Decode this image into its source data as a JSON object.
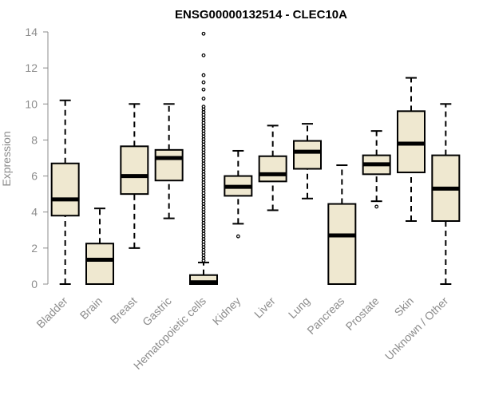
{
  "chart_data": {
    "type": "boxplot",
    "title": "ENSG00000132514 - CLEC10A",
    "xlabel": "",
    "ylabel": "Expression",
    "ylim": [
      0,
      14
    ],
    "yticks": [
      0,
      2,
      4,
      6,
      8,
      10,
      12,
      14
    ],
    "grid": false,
    "legend": "none",
    "box_fill": "#efe8d0",
    "box_stroke": "#000000",
    "categories": [
      "Bladder",
      "Brain",
      "Breast",
      "Gastric",
      "Hematopoietic cells",
      "Kidney",
      "Liver",
      "Lung",
      "Pancreas",
      "Prostate",
      "Skin",
      "Unknown / Other"
    ],
    "boxes": [
      {
        "min": 0.0,
        "q1": 3.8,
        "median": 4.7,
        "q3": 6.7,
        "max": 10.2,
        "outliers": []
      },
      {
        "min": 0.0,
        "q1": 0.0,
        "median": 1.35,
        "q3": 2.25,
        "max": 4.2,
        "outliers": []
      },
      {
        "min": 2.0,
        "q1": 5.0,
        "median": 6.0,
        "q3": 7.65,
        "max": 10.0,
        "outliers": []
      },
      {
        "min": 3.65,
        "q1": 5.75,
        "median": 7.0,
        "q3": 7.45,
        "max": 10.0,
        "outliers": []
      },
      {
        "min": 0.0,
        "q1": 0.0,
        "median": 0.1,
        "q3": 0.5,
        "max": 1.2,
        "outliers": [
          1.3,
          1.45,
          1.6,
          1.75,
          1.9,
          2.05,
          2.2,
          2.35,
          2.5,
          2.65,
          2.8,
          2.95,
          3.1,
          3.25,
          3.4,
          3.55,
          3.7,
          3.85,
          4.0,
          4.15,
          4.3,
          4.45,
          4.6,
          4.75,
          4.9,
          5.05,
          5.2,
          5.35,
          5.5,
          5.65,
          5.8,
          5.95,
          6.1,
          6.25,
          6.4,
          6.55,
          6.7,
          6.85,
          7.0,
          7.15,
          7.3,
          7.45,
          7.6,
          7.75,
          7.9,
          8.05,
          8.2,
          8.35,
          8.5,
          8.65,
          8.8,
          8.95,
          9.1,
          9.25,
          9.4,
          9.55,
          9.7,
          9.85,
          10.3,
          10.8,
          11.2,
          11.6,
          12.7,
          13.9
        ]
      },
      {
        "min": 3.35,
        "q1": 4.9,
        "median": 5.4,
        "q3": 6.0,
        "max": 7.4,
        "outliers": [
          2.65
        ]
      },
      {
        "min": 4.1,
        "q1": 5.7,
        "median": 6.1,
        "q3": 7.1,
        "max": 8.8,
        "outliers": []
      },
      {
        "min": 4.75,
        "q1": 6.4,
        "median": 7.35,
        "q3": 7.95,
        "max": 8.9,
        "outliers": []
      },
      {
        "min": 0.0,
        "q1": 0.0,
        "median": 2.7,
        "q3": 4.45,
        "max": 6.6,
        "outliers": []
      },
      {
        "min": 4.6,
        "q1": 6.1,
        "median": 6.65,
        "q3": 7.15,
        "max": 8.5,
        "outliers": [
          4.3
        ]
      },
      {
        "min": 3.5,
        "q1": 6.2,
        "median": 7.8,
        "q3": 9.6,
        "max": 11.45,
        "outliers": []
      },
      {
        "min": 0.0,
        "q1": 3.5,
        "median": 5.3,
        "q3": 7.15,
        "max": 10.0,
        "outliers": []
      }
    ]
  }
}
